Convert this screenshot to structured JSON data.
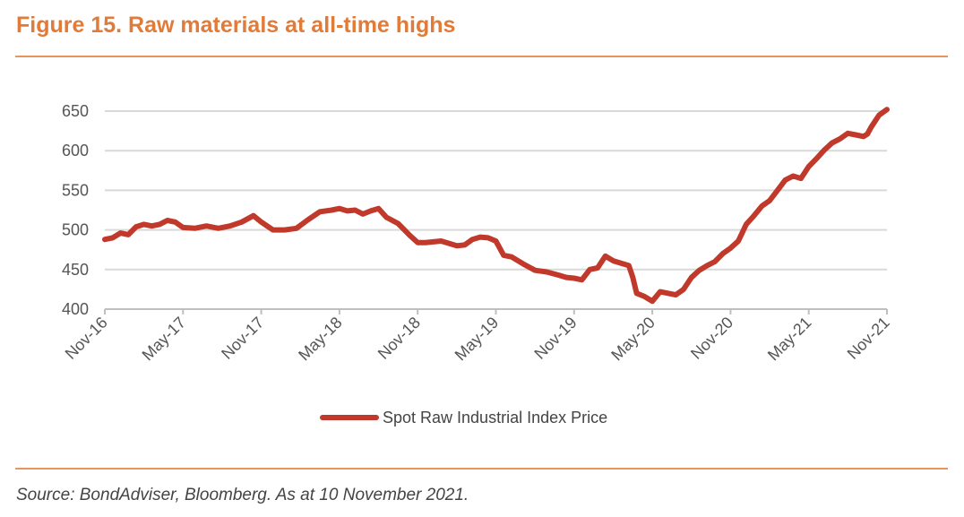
{
  "title": "Figure 15. Raw materials at all-time highs",
  "source": "Source: BondAdviser, Bloomberg. As at 10 November 2021.",
  "colors": {
    "accent": "#E07B39",
    "rule": "#E8955A",
    "series": "#C0392B",
    "grid": "#D9D9D9",
    "axis": "#BFBFBF"
  },
  "chart_data": {
    "type": "line",
    "title": "",
    "xlabel": "",
    "ylabel": "",
    "ylim": [
      400,
      650
    ],
    "yticks": [
      400,
      450,
      500,
      550,
      600,
      650
    ],
    "ytick_labels": [
      "400",
      "450",
      "500",
      "550",
      "600",
      "650"
    ],
    "xticks": [
      "Nov-16",
      "May-17",
      "Nov-17",
      "May-18",
      "Nov-18",
      "May-19",
      "Nov-19",
      "May-20",
      "Nov-20",
      "May-21",
      "Nov-21"
    ],
    "grid": true,
    "legend_position": "bottom",
    "series": [
      {
        "name": "Spot Raw Industrial Index Price",
        "x": [
          0,
          0.1,
          0.2,
          0.3,
          0.4,
          0.5,
          0.6,
          0.7,
          0.8,
          0.9,
          1.0,
          1.15,
          1.3,
          1.45,
          1.6,
          1.75,
          1.9,
          2.0,
          2.15,
          2.3,
          2.45,
          2.6,
          2.75,
          2.9,
          3.0,
          3.1,
          3.2,
          3.3,
          3.4,
          3.5,
          3.6,
          3.75,
          3.9,
          4.0,
          4.1,
          4.2,
          4.3,
          4.4,
          4.5,
          4.6,
          4.7,
          4.8,
          4.9,
          5.0,
          5.1,
          5.2,
          5.35,
          5.5,
          5.65,
          5.8,
          5.9,
          6.0,
          6.1,
          6.2,
          6.3,
          6.4,
          6.5,
          6.6,
          6.7,
          6.75,
          6.8,
          6.9,
          7.0,
          7.1,
          7.2,
          7.3,
          7.4,
          7.5,
          7.6,
          7.7,
          7.8,
          7.9,
          8.0,
          8.1,
          8.2,
          8.3,
          8.4,
          8.5,
          8.6,
          8.7,
          8.8,
          8.9,
          9.0,
          9.1,
          9.2,
          9.3,
          9.4,
          9.5,
          9.6,
          9.7,
          9.75,
          9.8,
          9.9,
          10.0
        ],
        "values": [
          488,
          490,
          496,
          494,
          504,
          507,
          505,
          507,
          512,
          510,
          503,
          502,
          505,
          502,
          505,
          510,
          518,
          510,
          500,
          500,
          502,
          513,
          523,
          525,
          527,
          524,
          525,
          520,
          524,
          527,
          516,
          508,
          493,
          484,
          484,
          485,
          486,
          483,
          480,
          481,
          488,
          491,
          490,
          486,
          468,
          466,
          457,
          449,
          447,
          443,
          440,
          439,
          437,
          450,
          452,
          467,
          461,
          458,
          455,
          440,
          420,
          416,
          410,
          422,
          420,
          418,
          425,
          440,
          449,
          455,
          460,
          470,
          477,
          486,
          507,
          518,
          530,
          537,
          550,
          563,
          568,
          565,
          580,
          590,
          601,
          610,
          615,
          622,
          620,
          618,
          621,
          630,
          645,
          652
        ]
      }
    ]
  }
}
